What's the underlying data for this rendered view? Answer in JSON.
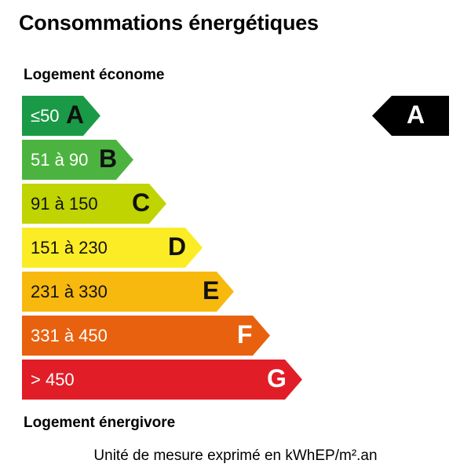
{
  "title": "Consommations énergétiques",
  "top_label": "Logement économe",
  "bottom_label": "Logement énergivore",
  "unit_note": "Unité de mesure exprimé en kWhEP/m².an",
  "classes": [
    {
      "letter": "A",
      "range": "≤50",
      "color": "#1a9a46"
    },
    {
      "letter": "B",
      "range": "51 à 90",
      "color": "#4db340"
    },
    {
      "letter": "C",
      "range": "91 à 150",
      "color": "#bfd400"
    },
    {
      "letter": "D",
      "range": "151 à 230",
      "color": "#fcec26"
    },
    {
      "letter": "E",
      "range": "231 à 330",
      "color": "#f8b90f"
    },
    {
      "letter": "F",
      "range": "331 à 450",
      "color": "#e8610f"
    },
    {
      "letter": "G",
      "range": "> 450",
      "color": "#e11d27"
    }
  ],
  "indicator": {
    "letter": "A",
    "color": "#000000"
  }
}
